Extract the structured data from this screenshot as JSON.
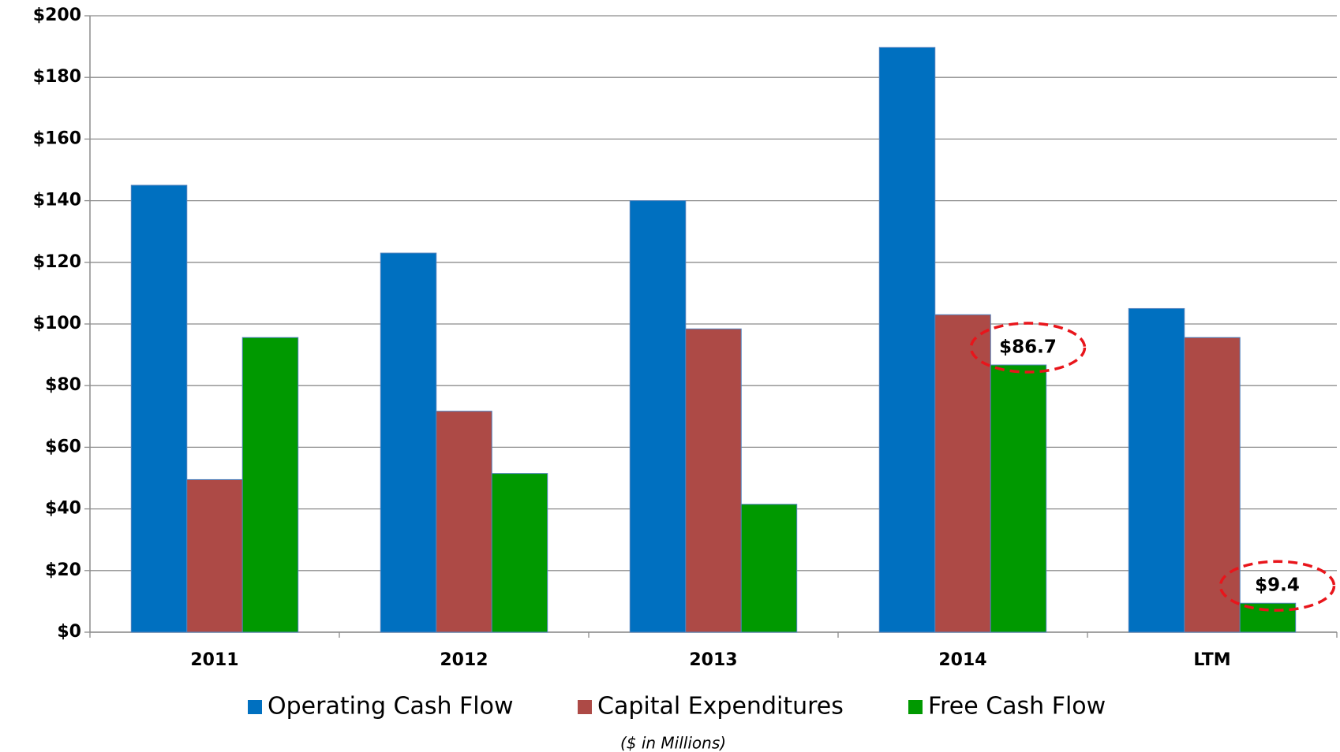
{
  "chart_data": {
    "type": "bar",
    "categories": [
      "2011",
      "2012",
      "2013",
      "2014",
      "LTM"
    ],
    "series": [
      {
        "name": "Operating Cash Flow",
        "color": "#0070c0",
        "values": [
          145,
          123,
          140,
          189.7,
          105
        ]
      },
      {
        "name": "Capital Expenditures",
        "color": "#ad4a46",
        "values": [
          49.5,
          71.7,
          98.4,
          103,
          95.6
        ]
      },
      {
        "name": "Free Cash Flow",
        "color": "#009900",
        "values": [
          95.6,
          51.5,
          41.5,
          86.7,
          9.4
        ],
        "value_labels": [
          null,
          null,
          null,
          "$86.7",
          "$9.4"
        ]
      }
    ],
    "ylim": [
      0,
      200
    ],
    "yticks": [
      {
        "value": 0,
        "label": "$0"
      },
      {
        "value": 20,
        "label": "$20"
      },
      {
        "value": 40,
        "label": "$40"
      },
      {
        "value": 60,
        "label": "$60"
      },
      {
        "value": 80,
        "label": "$80"
      },
      {
        "value": 100,
        "label": "$100"
      },
      {
        "value": 120,
        "label": "$120"
      },
      {
        "value": 140,
        "label": "$140"
      },
      {
        "value": 160,
        "label": "$160"
      },
      {
        "value": 180,
        "label": "$180"
      },
      {
        "value": 200,
        "label": "$200"
      }
    ],
    "grid": true,
    "legend": "bottom",
    "note": "($ in Millions)"
  }
}
